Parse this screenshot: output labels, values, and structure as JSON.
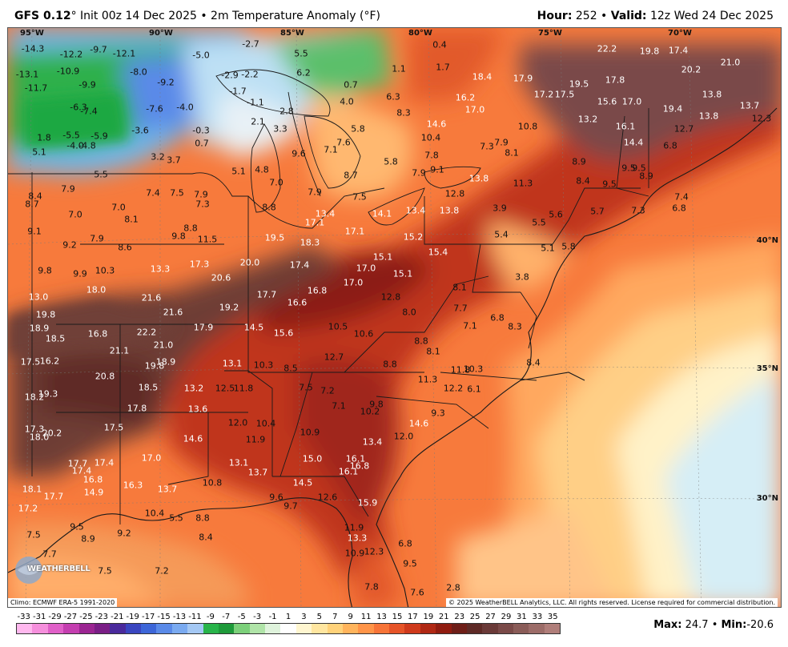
{
  "header": {
    "model": "GFS 0.12",
    "init": "° Init 00z 14 Dec 2025 • 2m Temperature Anomaly (°F)",
    "hour_label": "Hour:",
    "hour_value": " 252 • ",
    "valid_label": "Valid:",
    "valid_value": " 12z Wed 24 Dec 2025"
  },
  "longitudes": [
    "95°W",
    "90°W",
    "85°W",
    "80°W",
    "75°W",
    "70°W"
  ],
  "latitudes": [
    "40°N",
    "35°N",
    "30°N"
  ],
  "footer": {
    "climo": "Climo: ECMWF ERA-5 1991-2020",
    "copyright": "© 2025 WeatherBELL Analytics, LLC. All rights reserved. License required for commercial distribution.",
    "logo": "WEATHERBELL"
  },
  "legend": {
    "ticks": [
      "-33",
      "-31",
      "-29",
      "-27",
      "-25",
      "-23",
      "-21",
      "-19",
      "-17",
      "-15",
      "-13",
      "-11",
      "-9",
      "-7",
      "-5",
      "-3",
      "-1",
      "1",
      "3",
      "5",
      "7",
      "9",
      "11",
      "13",
      "15",
      "17",
      "19",
      "21",
      "23",
      "25",
      "27",
      "29",
      "31",
      "33",
      "35"
    ],
    "colors": [
      "#ffb8ee",
      "#f58fdc",
      "#e060c8",
      "#c43eb0",
      "#9b2592",
      "#7a1e86",
      "#4a2a9c",
      "#3a46c0",
      "#3d66d8",
      "#5a8ae8",
      "#7aaaf0",
      "#a4c8f4",
      "#28b44a",
      "#1e9a3a",
      "#7cd07a",
      "#b0e4a8",
      "#dff3dc",
      "#ffffff",
      "#fff6d0",
      "#ffe6a0",
      "#ffd27a",
      "#ffb45c",
      "#ff9448",
      "#f77438",
      "#e65428",
      "#cf3a1c",
      "#b02814",
      "#901c10",
      "#6e1e18",
      "#5e2a26",
      "#6a3a38",
      "#7a4a48",
      "#8a5c58",
      "#9c6c68",
      "#b07e7a"
    ]
  },
  "maxmin": {
    "max_label": "Max:",
    "max_value": " 24.7 • ",
    "min_label": "Min:",
    "min_value": "-20.6"
  },
  "values": [
    [
      "-14.3",
      40,
      60
    ],
    [
      "-12.2",
      88,
      67
    ],
    [
      "-9.7",
      122,
      61
    ],
    [
      "-12.1",
      154,
      66
    ],
    [
      "-13.1",
      33,
      92
    ],
    [
      "-10.9",
      84,
      88
    ],
    [
      "-8.0",
      172,
      89
    ],
    [
      "-11.7",
      44,
      109
    ],
    [
      "-9.9",
      108,
      105
    ],
    [
      "-9.2",
      206,
      102
    ],
    [
      "-6.3",
      97,
      133
    ],
    [
      "-7.4",
      110,
      138
    ],
    [
      "-7.6",
      192,
      135
    ],
    [
      "-4.0",
      230,
      133
    ],
    [
      "-5.5",
      88,
      168
    ],
    [
      "-5.9",
      123,
      169
    ],
    [
      "-4.0",
      93,
      181
    ],
    [
      "-4.8",
      108,
      181
    ],
    [
      "-3.6",
      174,
      162
    ],
    [
      "-0.3",
      250,
      162
    ],
    [
      "0.7",
      251,
      178
    ],
    [
      "1.8",
      54,
      171
    ],
    [
      "5.1",
      48,
      189
    ],
    [
      "3.2",
      196,
      195
    ],
    [
      "3.7",
      216,
      199
    ],
    [
      "5.1",
      297,
      213
    ],
    [
      "4.8",
      326,
      211
    ],
    [
      "7.0",
      344,
      227
    ],
    [
      "5.5",
      125,
      217
    ],
    [
      "7.9",
      84,
      235
    ],
    [
      "8.4",
      43,
      244
    ],
    [
      "8.7",
      39,
      254
    ],
    [
      "7.0",
      93,
      267
    ],
    [
      "7.0",
      147,
      258
    ],
    [
      "7.4",
      190,
      240
    ],
    [
      "7.5",
      220,
      240
    ],
    [
      "7.9",
      250,
      242
    ],
    [
      "7.3",
      252,
      254
    ],
    [
      "8.1",
      163,
      273
    ],
    [
      "9.1",
      42,
      288
    ],
    [
      "9.2",
      86,
      305
    ],
    [
      "7.9",
      120,
      297
    ],
    [
      "8.6",
      155,
      308
    ],
    [
      "9.8",
      222,
      294
    ],
    [
      "8.8",
      237,
      284
    ],
    [
      "11.5",
      258,
      298
    ],
    [
      "9.8",
      55,
      337
    ],
    [
      "9.9",
      99,
      341
    ],
    [
      "10.3",
      130,
      337
    ],
    [
      "13.3",
      199,
      335
    ],
    [
      "17.3",
      248,
      329
    ],
    [
      "20.6",
      275,
      346
    ],
    [
      "20.0",
      311,
      327
    ],
    [
      "19.5",
      342,
      296
    ],
    [
      "18.3",
      386,
      302
    ],
    [
      "17.4",
      373,
      330
    ],
    [
      "17.1",
      392,
      277
    ],
    [
      "13.4",
      405,
      266
    ],
    [
      "17.1",
      442,
      288
    ],
    [
      "14.1",
      476,
      266
    ],
    [
      "13.4",
      518,
      262
    ],
    [
      "13.8",
      560,
      262
    ],
    [
      "15.2",
      515,
      295
    ],
    [
      "15.4",
      546,
      314
    ],
    [
      "15.1",
      477,
      320
    ],
    [
      "15.1",
      502,
      341
    ],
    [
      "17.0",
      456,
      334
    ],
    [
      "17.0",
      440,
      352
    ],
    [
      "16.8",
      395,
      362
    ],
    [
      "17.7",
      332,
      367
    ],
    [
      "16.6",
      370,
      377
    ],
    [
      "19.2",
      285,
      383
    ],
    [
      "13.0",
      47,
      370
    ],
    [
      "18.0",
      119,
      361
    ],
    [
      "21.6",
      188,
      371
    ],
    [
      "21.6",
      215,
      389
    ],
    [
      "19.8",
      56,
      392
    ],
    [
      "18.9",
      48,
      409
    ],
    [
      "18.5",
      68,
      422
    ],
    [
      "16.8",
      121,
      416
    ],
    [
      "22.2",
      182,
      414
    ],
    [
      "21.1",
      148,
      437
    ],
    [
      "21.0",
      203,
      430
    ],
    [
      "17.9",
      253,
      408
    ],
    [
      "14.5",
      316,
      408
    ],
    [
      "15.6",
      353,
      415
    ],
    [
      "10.5",
      421,
      407
    ],
    [
      "10.6",
      453,
      416
    ],
    [
      "12.8",
      487,
      370
    ],
    [
      "8.0",
      510,
      389
    ],
    [
      "7.7",
      574,
      384
    ],
    [
      "8.1",
      573,
      358
    ],
    [
      "6.8",
      620,
      396
    ],
    [
      "8.3",
      642,
      407
    ],
    [
      "7.1",
      586,
      406
    ],
    [
      "17.5",
      37,
      451
    ],
    [
      "16.2",
      61,
      450
    ],
    [
      "19.8",
      192,
      456
    ],
    [
      "18.9",
      206,
      451
    ],
    [
      "20.8",
      130,
      469
    ],
    [
      "18.5",
      184,
      483
    ],
    [
      "13.1",
      289,
      453
    ],
    [
      "10.3",
      328,
      455
    ],
    [
      "8.5",
      362,
      459
    ],
    [
      "12.7",
      416,
      445
    ],
    [
      "8.8",
      525,
      425
    ],
    [
      "8.1",
      540,
      438
    ],
    [
      "8.8",
      486,
      454
    ],
    [
      "8.4",
      665,
      452
    ],
    [
      "11.3",
      533,
      473
    ],
    [
      "11.8",
      574,
      461
    ],
    [
      "10.3",
      590,
      460
    ],
    [
      "12.2",
      565,
      484
    ],
    [
      "6.1",
      591,
      485
    ],
    [
      "18.2",
      42,
      495
    ],
    [
      "19.3",
      59,
      491
    ],
    [
      "13.2",
      241,
      484
    ],
    [
      "12.5",
      280,
      484
    ],
    [
      "11.8",
      303,
      484
    ],
    [
      "7.5",
      381,
      483
    ],
    [
      "7.2",
      408,
      487
    ],
    [
      "17.8",
      170,
      509
    ],
    [
      "13.6",
      246,
      510
    ],
    [
      "7.1",
      422,
      506
    ],
    [
      "9.8",
      469,
      504
    ],
    [
      "10.2",
      461,
      513
    ],
    [
      "9.3",
      546,
      515
    ],
    [
      "17.3",
      42,
      535
    ],
    [
      "20.2",
      64,
      540
    ],
    [
      "18.0",
      48,
      545
    ],
    [
      "17.5",
      141,
      533
    ],
    [
      "12.0",
      296,
      527
    ],
    [
      "10.4",
      331,
      528
    ],
    [
      "10.9",
      386,
      539
    ],
    [
      "14.6",
      522,
      528
    ],
    [
      "12.0",
      503,
      544
    ],
    [
      "14.6",
      240,
      547
    ],
    [
      "11.9",
      318,
      548
    ],
    [
      "13.4",
      464,
      551
    ],
    [
      "17.0",
      188,
      571
    ],
    [
      "17.7",
      96,
      578
    ],
    [
      "17.4",
      129,
      577
    ],
    [
      "17.4",
      101,
      587
    ],
    [
      "15.0",
      389,
      572
    ],
    [
      "16.1",
      443,
      572
    ],
    [
      "16.8",
      448,
      581
    ],
    [
      "16.1",
      434,
      588
    ],
    [
      "13.1",
      297,
      577
    ],
    [
      "13.7",
      321,
      589
    ],
    [
      "16.8",
      115,
      598
    ],
    [
      "16.3",
      165,
      605
    ],
    [
      "14.9",
      116,
      614
    ],
    [
      "13.7",
      208,
      610
    ],
    [
      "10.8",
      264,
      602
    ],
    [
      "14.5",
      377,
      602
    ],
    [
      "12.6",
      408,
      620
    ],
    [
      "9.6",
      344,
      620
    ],
    [
      "9.7",
      362,
      631
    ],
    [
      "15.9",
      458,
      627
    ],
    [
      "18.1",
      39,
      610
    ],
    [
      "17.7",
      66,
      619
    ],
    [
      "17.2",
      34,
      634
    ],
    [
      "10.4",
      192,
      640
    ],
    [
      "5.5",
      219,
      646
    ],
    [
      "8.8",
      252,
      646
    ],
    [
      "9.5",
      95,
      657
    ],
    [
      "8.9",
      109,
      672
    ],
    [
      "9.2",
      154,
      665
    ],
    [
      "8.4",
      256,
      670
    ],
    [
      "11.9",
      441,
      658
    ],
    [
      "13.3",
      445,
      671
    ],
    [
      "10.9",
      442,
      690
    ],
    [
      "12.3",
      466,
      688
    ],
    [
      "6.8",
      505,
      678
    ],
    [
      "9.5",
      511,
      703
    ],
    [
      "7.5",
      41,
      667
    ],
    [
      "7.7",
      61,
      691
    ],
    [
      "7.5",
      130,
      712
    ],
    [
      "7.2",
      201,
      712
    ],
    [
      "7.8",
      463,
      732
    ],
    [
      "7.6",
      520,
      739
    ],
    [
      "2.8",
      565,
      733
    ],
    [
      "-2.7",
      312,
      54
    ],
    [
      "-5.0",
      250,
      68
    ],
    [
      "5.5",
      375,
      66
    ],
    [
      "6.2",
      378,
      90
    ],
    [
      "-2.9",
      286,
      93
    ],
    [
      "-2.2",
      311,
      92
    ],
    [
      "-1.7",
      296,
      113
    ],
    [
      "-1.1",
      318,
      127
    ],
    [
      "2.8",
      357,
      138
    ],
    [
      "0.7",
      437,
      105
    ],
    [
      "4.0",
      432,
      126
    ],
    [
      "2.1",
      321,
      151
    ],
    [
      "3.3",
      349,
      160
    ],
    [
      "5.8",
      446,
      160
    ],
    [
      "9.6",
      372,
      191
    ],
    [
      "7.1",
      412,
      186
    ],
    [
      "7.6",
      428,
      177
    ],
    [
      "5.8",
      487,
      201
    ],
    [
      "8.7",
      437,
      218
    ],
    [
      "7.9",
      392,
      239
    ],
    [
      "7.5",
      448,
      245
    ],
    [
      "8.8",
      335,
      258
    ],
    [
      "6.3",
      490,
      120
    ],
    [
      "8.3",
      503,
      140
    ],
    [
      "1.1",
      497,
      85
    ],
    [
      "0.4",
      548,
      55
    ],
    [
      "1.7",
      552,
      83
    ],
    [
      "14.6",
      544,
      154
    ],
    [
      "10.4",
      537,
      171
    ],
    [
      "7.8",
      538,
      193
    ],
    [
      "9.1",
      545,
      211
    ],
    [
      "7.9",
      522,
      215
    ],
    [
      "7.3",
      607,
      182
    ],
    [
      "7.9",
      625,
      177
    ],
    [
      "8.1",
      638,
      190
    ],
    [
      "13.8",
      597,
      222
    ],
    [
      "12.8",
      567,
      241
    ],
    [
      "11.3",
      652,
      228
    ],
    [
      "3.9",
      623,
      259
    ],
    [
      "5.5",
      672,
      277
    ],
    [
      "5.6",
      693,
      267
    ],
    [
      "5.4",
      625,
      292
    ],
    [
      "5.1",
      683,
      309
    ],
    [
      "5.8",
      709,
      307
    ],
    [
      "3.8",
      651,
      345
    ],
    [
      "18.4",
      601,
      95
    ],
    [
      "16.2",
      580,
      121
    ],
    [
      "17.0",
      592,
      136
    ],
    [
      "17.9",
      652,
      97
    ],
    [
      "17.2",
      678,
      117
    ],
    [
      "17.5",
      704,
      117
    ],
    [
      "19.5",
      722,
      104
    ],
    [
      "10.8",
      658,
      157
    ],
    [
      "13.2",
      733,
      148
    ],
    [
      "15.6",
      757,
      126
    ],
    [
      "17.8",
      767,
      99
    ],
    [
      "17.0",
      788,
      126
    ],
    [
      "16.1",
      780,
      157
    ],
    [
      "14.4",
      790,
      177
    ],
    [
      "22.2",
      757,
      60
    ],
    [
      "19.8",
      810,
      63
    ],
    [
      "17.4",
      846,
      62
    ],
    [
      "21.0",
      911,
      77
    ],
    [
      "20.2",
      862,
      86
    ],
    [
      "19.4",
      839,
      135
    ],
    [
      "13.8",
      888,
      117
    ],
    [
      "13.7",
      935,
      131
    ],
    [
      "12.3",
      950,
      147
    ],
    [
      "13.8",
      884,
      144
    ],
    [
      "12.7",
      853,
      160
    ],
    [
      "6.8",
      836,
      181
    ],
    [
      "8.9",
      722,
      201
    ],
    [
      "8.4",
      727,
      225
    ],
    [
      "9.5",
      760,
      229
    ],
    [
      "9.5",
      784,
      209
    ],
    [
      "9.5",
      797,
      209
    ],
    [
      "8.9",
      806,
      219
    ],
    [
      "5.7",
      745,
      263
    ],
    [
      "7.3",
      796,
      262
    ],
    [
      "7.4",
      850,
      245
    ],
    [
      "6.8",
      847,
      259
    ]
  ]
}
